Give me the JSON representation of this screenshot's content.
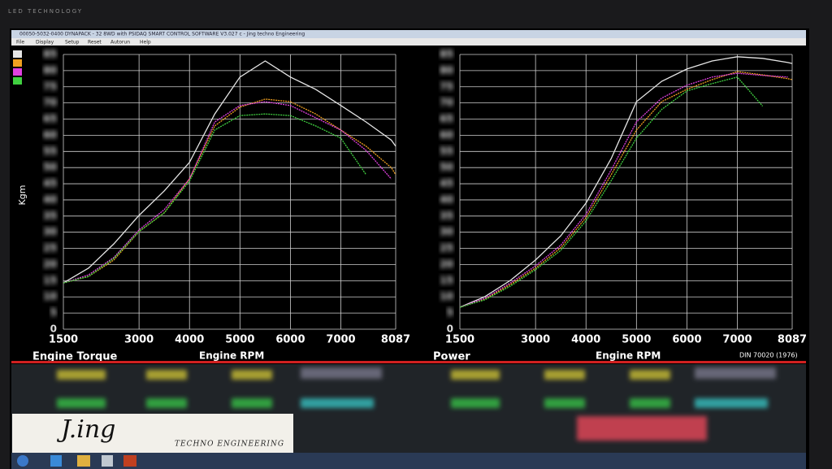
{
  "bezel": "LED TECHNOLOGY",
  "window": {
    "title": "00050-5032-0400 DYNAPACK - 32 8WD with PSIDAQ SMART CONTROL SOFTWARE V3.027 c - Jing techno Engineering",
    "menu": [
      "File",
      "Display",
      "Setup",
      "Reset",
      "Autorun",
      "Help"
    ]
  },
  "logo": {
    "name": "J.ing",
    "tagline": "TECHNO ENGINEERING"
  },
  "chart_data": [
    {
      "type": "line",
      "title": "Engine Torque",
      "x_label": "Engine RPM",
      "y_label": "Kgm",
      "x": [
        1500,
        2000,
        2500,
        3000,
        3500,
        4000,
        4500,
        5000,
        5500,
        6000,
        6500,
        7000,
        7500,
        8000,
        8087
      ],
      "xlim": [
        1500,
        8087
      ],
      "xticks": [
        1500,
        3000,
        4000,
        5000,
        6000,
        7000,
        8087
      ],
      "ylim": [
        0,
        85
      ],
      "yticks": [
        0,
        5,
        10,
        15,
        20,
        25,
        30,
        35,
        40,
        45,
        50,
        55,
        60,
        65,
        70,
        75,
        80,
        85
      ],
      "grid": true,
      "series": [
        {
          "color": "#e6e6e6",
          "values": [
            14.3,
            18.9,
            26.4,
            35.2,
            42.8,
            51.6,
            66.6,
            78.0,
            83.0,
            78.0,
            74.2,
            69.2,
            64.1,
            58.5,
            56.6
          ]
        },
        {
          "color": "#f0a020",
          "values": [
            14.3,
            16.3,
            21.4,
            30.2,
            36.0,
            46.5,
            62.9,
            68.7,
            71.2,
            70.4,
            66.6,
            61.6,
            56.6,
            50.0,
            47.8
          ]
        },
        {
          "color": "#e040e0",
          "values": [
            14.3,
            16.8,
            22.2,
            30.7,
            37.0,
            46.5,
            64.1,
            69.2,
            70.4,
            69.2,
            65.4,
            61.6,
            55.3,
            46.5,
            null
          ]
        },
        {
          "color": "#40d040",
          "values": [
            14.3,
            16.3,
            21.9,
            30.2,
            36.0,
            45.8,
            61.6,
            66.1,
            66.6,
            66.1,
            62.9,
            59.1,
            47.8,
            null,
            null
          ]
        }
      ]
    },
    {
      "type": "line",
      "title": "Power",
      "x_label": "Engine RPM",
      "note": "DIN 70020 (1976)",
      "x": [
        1500,
        2000,
        2500,
        3000,
        3500,
        4000,
        4500,
        5000,
        5500,
        6000,
        6500,
        7000,
        7500,
        8000,
        8087
      ],
      "xlim": [
        1500,
        8087
      ],
      "xticks": [
        1500,
        3000,
        4000,
        5000,
        6000,
        7000,
        8087
      ],
      "ylim": [
        0,
        85
      ],
      "yticks": [
        0,
        5,
        10,
        15,
        20,
        25,
        30,
        35,
        40,
        45,
        50,
        55,
        60,
        65,
        70,
        75,
        80,
        85
      ],
      "grid": true,
      "series": [
        {
          "color": "#e6e6e6",
          "values": [
            6.8,
            10.1,
            15.1,
            21.4,
            28.9,
            39.0,
            52.8,
            70.4,
            76.7,
            80.5,
            83.0,
            84.3,
            83.8,
            82.5,
            82.2
          ]
        },
        {
          "color": "#f0a020",
          "values": [
            6.8,
            9.3,
            13.8,
            18.9,
            25.2,
            34.5,
            47.8,
            61.6,
            70.4,
            74.2,
            77.2,
            79.7,
            78.7,
            77.5,
            77.2
          ]
        },
        {
          "color": "#e040e0",
          "values": [
            6.8,
            9.6,
            14.3,
            19.6,
            26.0,
            35.5,
            49.3,
            64.1,
            71.5,
            75.5,
            78.0,
            79.2,
            78.5,
            78.0,
            null
          ]
        },
        {
          "color": "#40d040",
          "values": [
            6.8,
            9.1,
            13.3,
            18.4,
            24.4,
            33.5,
            46.0,
            59.1,
            68.0,
            73.7,
            76.0,
            78.0,
            69.0,
            null,
            null
          ]
        }
      ]
    }
  ]
}
